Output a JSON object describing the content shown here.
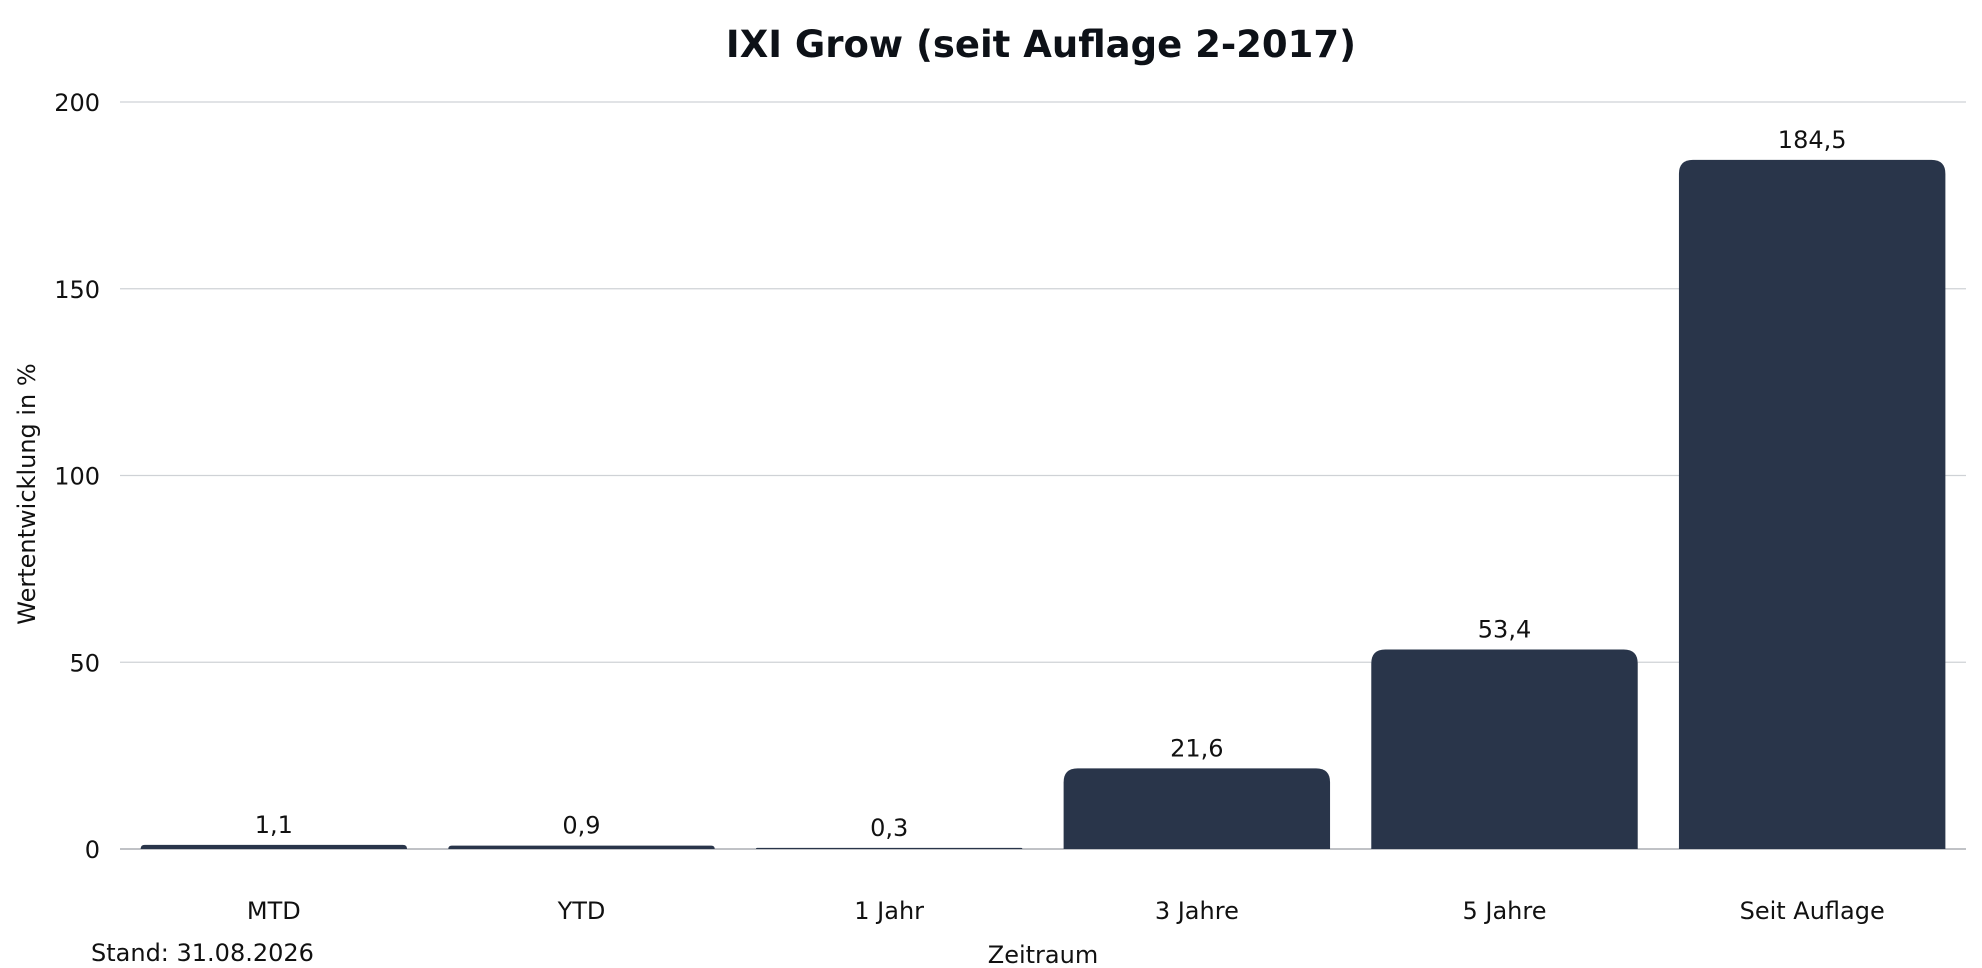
{
  "chart_data": {
    "type": "bar",
    "title": "IXI Grow (seit Auflage 2-2017)",
    "xlabel": "Zeitraum",
    "ylabel": "Wertentwicklung in %",
    "categories": [
      "MTD",
      "YTD",
      "1 Jahr",
      "3 Jahre",
      "5 Jahre",
      "Seit Auflage"
    ],
    "values": [
      1.1,
      0.9,
      0.3,
      21.6,
      53.4,
      184.5
    ],
    "value_labels": [
      "1,1",
      "0,9",
      "0,3",
      "21,6",
      "53,4",
      "184,5"
    ],
    "ylim": [
      0,
      200
    ],
    "yticks": [
      0,
      50,
      100,
      150,
      200
    ],
    "grid": true,
    "bar_color": "#29354a"
  },
  "footnote": "Stand: 31.08.2026"
}
